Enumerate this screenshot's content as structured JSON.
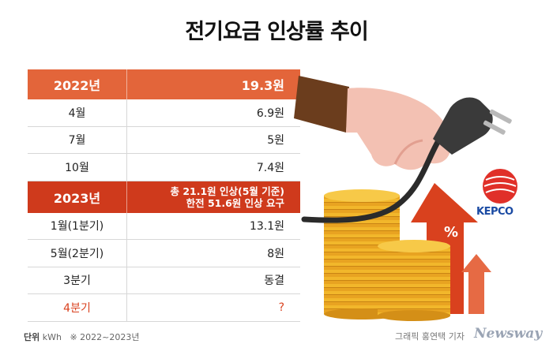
{
  "title": "전기요금 인상률 추이",
  "rows": [
    {
      "label": "2022년",
      "value": "19.3원"
    },
    {
      "label": "4월",
      "value": "6.9원"
    },
    {
      "label": "7월",
      "value": "5원"
    },
    {
      "label": "10월",
      "value": "7.4원"
    },
    {
      "label": "2023년",
      "value_line1": "총 21.1원 인상(5월 기준)",
      "value_line2": "한전 51.6원 인상 요구"
    },
    {
      "label": "1월(1분기)",
      "value": "13.1원"
    },
    {
      "label": "5월(2분기)",
      "value": "8원"
    },
    {
      "label": "3분기",
      "value": "동결"
    },
    {
      "label": "4분기",
      "value": "?"
    }
  ],
  "footer": {
    "unit_label": "단위",
    "unit_value": "kWh",
    "note": "※ 2022~2023년",
    "credit": "그래픽 홍연택 기자",
    "brand": "Newsway"
  },
  "logo": {
    "text": "KEPCO"
  },
  "percent_sign": "%",
  "colors": {
    "header_orange": "#e3653a",
    "header_red": "#cf3a1c",
    "q4_text": "#d9411e",
    "arrow": "#d9411e",
    "coin": "#f2b72b"
  }
}
